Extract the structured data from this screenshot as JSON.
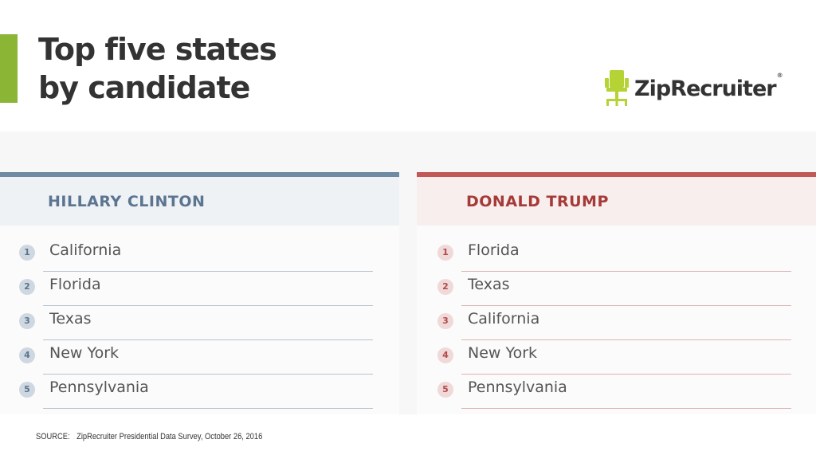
{
  "header": {
    "title_line1": "Top five states",
    "title_line2": "by candidate"
  },
  "logo": {
    "name": "ZipRecruiter",
    "registered": "®",
    "icon": "office-chair-icon",
    "color": "#b5d334"
  },
  "colors": {
    "accent_green": "#8bb534",
    "clinton_primary": "#6f8aa3",
    "trump_primary": "#bf5a58"
  },
  "panels": [
    {
      "candidate": "HILLARY CLINTON",
      "states": [
        {
          "rank": "1",
          "name": "California"
        },
        {
          "rank": "2",
          "name": "Florida"
        },
        {
          "rank": "3",
          "name": "Texas"
        },
        {
          "rank": "4",
          "name": "New York"
        },
        {
          "rank": "5",
          "name": "Pennsylvania"
        }
      ]
    },
    {
      "candidate": "DONALD TRUMP",
      "states": [
        {
          "rank": "1",
          "name": "Florida"
        },
        {
          "rank": "2",
          "name": "Texas"
        },
        {
          "rank": "3",
          "name": "California"
        },
        {
          "rank": "4",
          "name": "New York"
        },
        {
          "rank": "5",
          "name": "Pennsylvania"
        }
      ]
    }
  ],
  "footer": {
    "source_label": "SOURCE:",
    "source_text": "ZipRecruiter Presidential Data Survey, October 26, 2016"
  }
}
